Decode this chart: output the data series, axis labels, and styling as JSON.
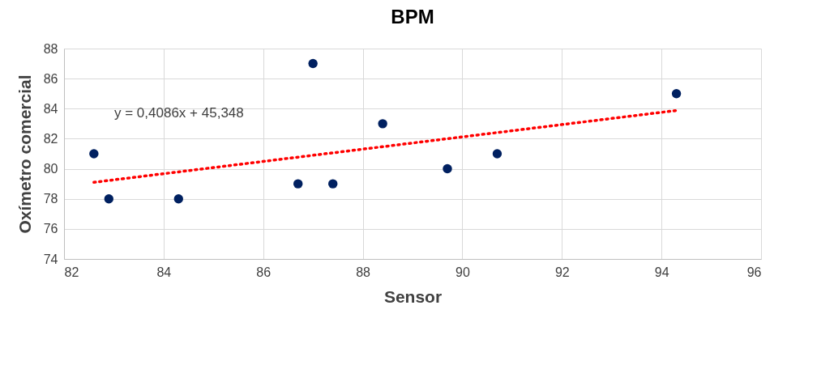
{
  "chart_data": {
    "type": "scatter",
    "title": "BPM",
    "xlabel": "Sensor",
    "ylabel": "Oxímetro comercial",
    "xlim": [
      82,
      96
    ],
    "xticks": [
      82,
      84,
      86,
      88,
      90,
      92,
      94,
      96
    ],
    "ylim": [
      74,
      88
    ],
    "yticks": [
      74,
      76,
      78,
      80,
      82,
      84,
      86,
      88
    ],
    "grid": true,
    "series": [
      {
        "type": "scatter",
        "marker": "circle",
        "color": "#002060",
        "x": [
          82.6,
          82.9,
          84.3,
          86.7,
          87.0,
          87.4,
          88.4,
          89.7,
          90.7,
          94.3
        ],
        "values": [
          81,
          78,
          78,
          79,
          87,
          79,
          83,
          80,
          81,
          85
        ]
      },
      {
        "type": "line",
        "color": "#ff0000",
        "line_style": "dotted",
        "x": [
          82.6,
          94.3
        ],
        "values": [
          79.1,
          83.88
        ]
      }
    ],
    "annotations": [
      "y = 0,4086x + 45,348"
    ]
  }
}
